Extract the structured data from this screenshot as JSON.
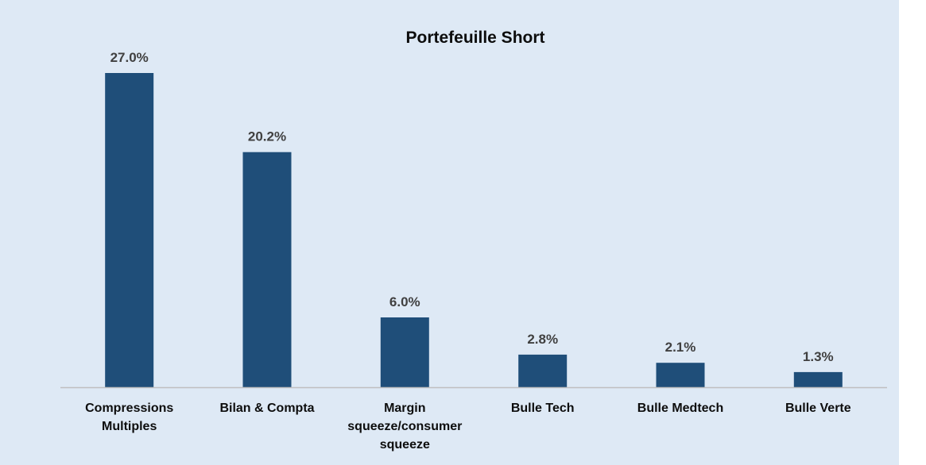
{
  "colors": {
    "background": "#dee9f5",
    "bar": "#1f4e79",
    "axis": "#bfbfbf",
    "value_label": "#404040",
    "text": "#0d0d0d"
  },
  "chart_data": {
    "type": "bar",
    "title": "Portefeuille Short",
    "xlabel": "",
    "ylabel": "",
    "categories": [
      [
        "Compressions",
        "Multiples"
      ],
      [
        "Bilan & Compta"
      ],
      [
        "Margin",
        "squeeze/consumer",
        "squeeze"
      ],
      [
        "Bulle Tech"
      ],
      [
        "Bulle Medtech"
      ],
      [
        "Bulle Verte"
      ]
    ],
    "values": [
      27.0,
      20.2,
      6.0,
      2.8,
      2.1,
      1.3
    ],
    "value_labels": [
      "27.0%",
      "20.2%",
      "6.0%",
      "2.8%",
      "2.1%",
      "1.3%"
    ],
    "unit": "%",
    "ylim": [
      0,
      27.0
    ],
    "grid": false,
    "legend": "none"
  }
}
